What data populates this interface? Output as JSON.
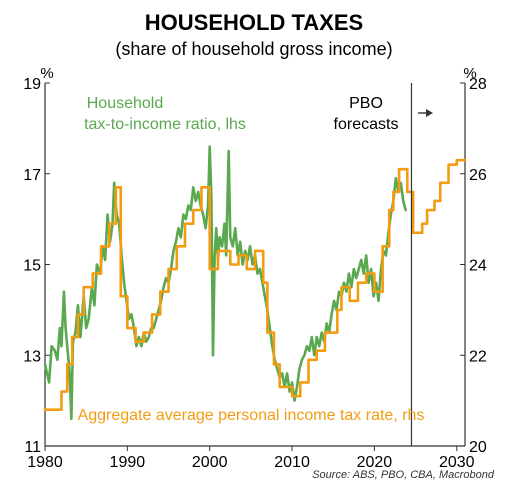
{
  "chart_data": {
    "type": "line",
    "title": "HOUSEHOLD TAXES",
    "subtitle": "(share of household gross income)",
    "left_unit": "%",
    "right_unit": "%",
    "source": "Source: ABS, PBO, CBA, Macrobond",
    "x_ticks": [
      "1980",
      "1990",
      "2000",
      "2010",
      "2020",
      "2030"
    ],
    "xlim": [
      1980,
      2031
    ],
    "y_left": {
      "ticks": [
        "11",
        "13",
        "15",
        "17",
        "19"
      ],
      "lim": [
        11,
        19
      ]
    },
    "y_right": {
      "ticks": [
        "20",
        "22",
        "24",
        "26",
        "28"
      ],
      "lim": [
        20,
        28
      ]
    },
    "forecast_line_x": 2024.5,
    "forecast_label": [
      "PBO",
      "forecasts"
    ],
    "colors": {
      "green": "#5aa84f",
      "orange": "#f39c12",
      "text_green": "#5aa84f",
      "text_orange": "#f39c12",
      "axis": "#333333"
    },
    "series": [
      {
        "name": "Household tax-to-income ratio, lhs",
        "label_lines": [
          "Household",
          "tax-to-income ratio, lhs"
        ],
        "axis": "left",
        "points": [
          [
            1980.0,
            12.8
          ],
          [
            1980.5,
            12.4
          ],
          [
            1980.8,
            13.2
          ],
          [
            1981.2,
            13.1
          ],
          [
            1981.5,
            12.9
          ],
          [
            1981.8,
            13.6
          ],
          [
            1982.0,
            13.2
          ],
          [
            1982.3,
            14.4
          ],
          [
            1982.5,
            13.6
          ],
          [
            1982.8,
            13.0
          ],
          [
            1983.0,
            12.6
          ],
          [
            1983.2,
            11.6
          ],
          [
            1983.4,
            13.3
          ],
          [
            1983.7,
            13.5
          ],
          [
            1984.0,
            14.1
          ],
          [
            1984.3,
            13.4
          ],
          [
            1984.7,
            14.3
          ],
          [
            1985.0,
            13.6
          ],
          [
            1985.3,
            13.8
          ],
          [
            1985.7,
            14.5
          ],
          [
            1986.0,
            14.1
          ],
          [
            1986.3,
            15.0
          ],
          [
            1986.7,
            14.8
          ],
          [
            1987.0,
            15.4
          ],
          [
            1987.3,
            15.1
          ],
          [
            1987.6,
            16.1
          ],
          [
            1987.9,
            15.5
          ],
          [
            1988.2,
            15.9
          ],
          [
            1988.4,
            16.8
          ],
          [
            1988.7,
            16.1
          ],
          [
            1989.0,
            15.9
          ],
          [
            1989.3,
            15.2
          ],
          [
            1989.6,
            14.6
          ],
          [
            1989.9,
            14.2
          ],
          [
            1990.2,
            13.8
          ],
          [
            1990.5,
            13.9
          ],
          [
            1990.8,
            13.6
          ],
          [
            1991.1,
            13.2
          ],
          [
            1991.4,
            13.4
          ],
          [
            1991.7,
            13.2
          ],
          [
            1992.0,
            13.5
          ],
          [
            1992.3,
            13.3
          ],
          [
            1992.6,
            13.4
          ],
          [
            1992.9,
            13.6
          ],
          [
            1993.2,
            13.6
          ],
          [
            1993.5,
            13.8
          ],
          [
            1993.8,
            14.0
          ],
          [
            1994.1,
            14.2
          ],
          [
            1994.4,
            14.5
          ],
          [
            1994.7,
            14.7
          ],
          [
            1995.0,
            14.6
          ],
          [
            1995.3,
            14.9
          ],
          [
            1995.6,
            15.3
          ],
          [
            1995.9,
            15.5
          ],
          [
            1996.2,
            15.8
          ],
          [
            1996.5,
            15.6
          ],
          [
            1996.8,
            16.1
          ],
          [
            1997.1,
            16.0
          ],
          [
            1997.4,
            16.3
          ],
          [
            1997.7,
            16.2
          ],
          [
            1998.0,
            16.7
          ],
          [
            1998.3,
            16.4
          ],
          [
            1998.6,
            16.6
          ],
          [
            1998.9,
            16.3
          ],
          [
            1999.2,
            16.1
          ],
          [
            1999.5,
            15.8
          ],
          [
            1999.8,
            16.3
          ],
          [
            2000.0,
            17.6
          ],
          [
            2000.2,
            16.5
          ],
          [
            2000.4,
            13.0
          ],
          [
            2000.6,
            15.2
          ],
          [
            2000.8,
            15.8
          ],
          [
            2001.0,
            15.1
          ],
          [
            2001.2,
            15.6
          ],
          [
            2001.5,
            15.4
          ],
          [
            2001.8,
            15.9
          ],
          [
            2002.0,
            15.2
          ],
          [
            2002.3,
            17.5
          ],
          [
            2002.5,
            15.6
          ],
          [
            2002.8,
            15.4
          ],
          [
            2003.1,
            15.8
          ],
          [
            2003.4,
            15.2
          ],
          [
            2003.7,
            15.5
          ],
          [
            2004.0,
            15.0
          ],
          [
            2004.3,
            15.3
          ],
          [
            2004.6,
            15.1
          ],
          [
            2004.9,
            15.4
          ],
          [
            2005.2,
            15.0
          ],
          [
            2005.5,
            15.2
          ],
          [
            2005.8,
            14.8
          ],
          [
            2006.1,
            14.9
          ],
          [
            2006.4,
            14.6
          ],
          [
            2006.7,
            14.3
          ],
          [
            2007.0,
            14.0
          ],
          [
            2007.3,
            13.6
          ],
          [
            2007.6,
            13.2
          ],
          [
            2007.9,
            12.9
          ],
          [
            2008.2,
            12.7
          ],
          [
            2008.5,
            12.5
          ],
          [
            2008.8,
            12.6
          ],
          [
            2009.1,
            12.3
          ],
          [
            2009.4,
            12.6
          ],
          [
            2009.7,
            12.2
          ],
          [
            2010.0,
            12.4
          ],
          [
            2010.3,
            12.0
          ],
          [
            2010.6,
            12.3
          ],
          [
            2010.9,
            12.7
          ],
          [
            2011.2,
            12.9
          ],
          [
            2011.5,
            13.0
          ],
          [
            2011.8,
            13.2
          ],
          [
            2012.1,
            13.1
          ],
          [
            2012.4,
            13.4
          ],
          [
            2012.7,
            13.0
          ],
          [
            2013.0,
            13.4
          ],
          [
            2013.3,
            13.2
          ],
          [
            2013.6,
            13.5
          ],
          [
            2013.9,
            13.3
          ],
          [
            2014.2,
            13.7
          ],
          [
            2014.5,
            13.5
          ],
          [
            2014.8,
            13.9
          ],
          [
            2015.1,
            14.2
          ],
          [
            2015.4,
            14.0
          ],
          [
            2015.7,
            14.4
          ],
          [
            2016.0,
            14.3
          ],
          [
            2016.3,
            14.6
          ],
          [
            2016.6,
            14.4
          ],
          [
            2016.9,
            14.8
          ],
          [
            2017.2,
            14.5
          ],
          [
            2017.5,
            14.9
          ],
          [
            2017.8,
            14.7
          ],
          [
            2018.1,
            14.9
          ],
          [
            2018.4,
            15.1
          ],
          [
            2018.7,
            14.8
          ],
          [
            2019.0,
            15.2
          ],
          [
            2019.3,
            14.6
          ],
          [
            2019.6,
            14.9
          ],
          [
            2019.9,
            14.3
          ],
          [
            2020.2,
            14.6
          ],
          [
            2020.5,
            14.2
          ],
          [
            2020.8,
            14.9
          ],
          [
            2021.1,
            15.3
          ],
          [
            2021.4,
            15.2
          ],
          [
            2021.7,
            15.7
          ],
          [
            2022.0,
            16.1
          ],
          [
            2022.3,
            16.4
          ],
          [
            2022.6,
            16.9
          ],
          [
            2022.9,
            16.6
          ],
          [
            2023.2,
            16.8
          ],
          [
            2023.5,
            16.4
          ],
          [
            2023.8,
            16.2
          ]
        ]
      },
      {
        "name": "Aggregate average personal income tax rate, rhs",
        "label_lines": [
          "Aggregate average personal income tax rate, rhs"
        ],
        "axis": "right",
        "points": [
          [
            1980.0,
            20.8
          ],
          [
            1982.0,
            20.8
          ],
          [
            1982.0,
            21.2
          ],
          [
            1982.7,
            21.2
          ],
          [
            1982.7,
            21.8
          ],
          [
            1983.3,
            21.8
          ],
          [
            1983.3,
            22.4
          ],
          [
            1984.0,
            22.4
          ],
          [
            1984.0,
            22.9
          ],
          [
            1984.7,
            22.9
          ],
          [
            1984.7,
            23.5
          ],
          [
            1985.8,
            23.5
          ],
          [
            1985.8,
            23.8
          ],
          [
            1986.8,
            23.8
          ],
          [
            1986.8,
            24.4
          ],
          [
            1987.8,
            24.4
          ],
          [
            1987.8,
            24.9
          ],
          [
            1988.6,
            24.9
          ],
          [
            1988.6,
            25.7
          ],
          [
            1989.2,
            25.7
          ],
          [
            1989.2,
            23.3
          ],
          [
            1990.0,
            23.3
          ],
          [
            1990.0,
            22.6
          ],
          [
            1991.0,
            22.6
          ],
          [
            1991.0,
            22.3
          ],
          [
            1992.0,
            22.3
          ],
          [
            1992.0,
            22.5
          ],
          [
            1993.0,
            22.5
          ],
          [
            1993.0,
            22.9
          ],
          [
            1994.0,
            22.9
          ],
          [
            1994.0,
            23.4
          ],
          [
            1995.0,
            23.4
          ],
          [
            1995.0,
            23.9
          ],
          [
            1996.0,
            23.9
          ],
          [
            1996.0,
            24.4
          ],
          [
            1997.0,
            24.4
          ],
          [
            1997.0,
            24.9
          ],
          [
            1998.0,
            24.9
          ],
          [
            1998.0,
            25.2
          ],
          [
            1999.0,
            25.2
          ],
          [
            1999.0,
            25.7
          ],
          [
            2000.0,
            25.7
          ],
          [
            2000.0,
            23.9
          ],
          [
            2001.0,
            23.9
          ],
          [
            2001.0,
            24.3
          ],
          [
            2002.5,
            24.3
          ],
          [
            2002.5,
            24.0
          ],
          [
            2003.5,
            24.0
          ],
          [
            2003.5,
            24.2
          ],
          [
            2004.5,
            24.2
          ],
          [
            2004.5,
            23.9
          ],
          [
            2005.5,
            23.9
          ],
          [
            2005.5,
            24.3
          ],
          [
            2006.5,
            24.3
          ],
          [
            2006.5,
            23.6
          ],
          [
            2007.0,
            23.6
          ],
          [
            2007.0,
            22.5
          ],
          [
            2007.8,
            22.5
          ],
          [
            2007.8,
            21.8
          ],
          [
            2008.5,
            21.8
          ],
          [
            2008.5,
            21.3
          ],
          [
            2010.0,
            21.3
          ],
          [
            2010.0,
            21.1
          ],
          [
            2011.0,
            21.1
          ],
          [
            2011.0,
            21.4
          ],
          [
            2012.0,
            21.4
          ],
          [
            2012.0,
            21.9
          ],
          [
            2013.0,
            21.9
          ],
          [
            2013.0,
            22.1
          ],
          [
            2014.0,
            22.1
          ],
          [
            2014.0,
            22.5
          ],
          [
            2015.5,
            22.5
          ],
          [
            2015.5,
            23.0
          ],
          [
            2016.0,
            23.0
          ],
          [
            2016.0,
            23.5
          ],
          [
            2017.0,
            23.5
          ],
          [
            2017.0,
            23.2
          ],
          [
            2018.0,
            23.2
          ],
          [
            2018.0,
            23.6
          ],
          [
            2019.0,
            23.6
          ],
          [
            2019.0,
            23.8
          ],
          [
            2020.0,
            23.8
          ],
          [
            2020.0,
            23.4
          ],
          [
            2021.0,
            23.4
          ],
          [
            2021.0,
            24.4
          ],
          [
            2021.8,
            24.4
          ],
          [
            2021.8,
            25.2
          ],
          [
            2022.3,
            25.2
          ],
          [
            2022.3,
            25.6
          ],
          [
            2023.0,
            25.6
          ],
          [
            2023.0,
            26.1
          ],
          [
            2024.0,
            26.1
          ],
          [
            2024.0,
            25.6
          ],
          [
            2024.7,
            25.6
          ],
          [
            2024.7,
            24.7
          ],
          [
            2025.8,
            24.7
          ],
          [
            2025.8,
            24.9
          ],
          [
            2026.4,
            24.9
          ],
          [
            2026.4,
            25.2
          ],
          [
            2027.3,
            25.2
          ],
          [
            2027.3,
            25.4
          ],
          [
            2028.0,
            25.4
          ],
          [
            2028.0,
            25.8
          ],
          [
            2029.0,
            25.8
          ],
          [
            2029.0,
            26.2
          ],
          [
            2030.0,
            26.2
          ],
          [
            2030.0,
            26.3
          ],
          [
            2031.0,
            26.3
          ]
        ]
      }
    ]
  }
}
